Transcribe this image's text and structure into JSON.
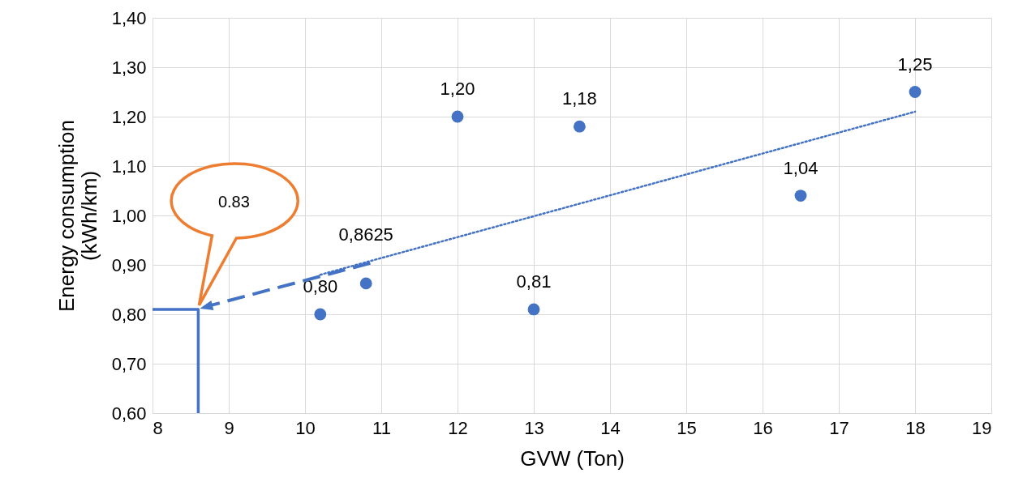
{
  "chart_data": {
    "type": "scatter",
    "xlabel": "GVW (Ton)",
    "ylabel": "Energy consumption (kWh/km)",
    "xlim": [
      8,
      19
    ],
    "xticks": [
      8,
      9,
      10,
      11,
      12,
      13,
      14,
      15,
      16,
      17,
      18,
      19
    ],
    "ylim": [
      0.6,
      1.4
    ],
    "yticks": [
      {
        "value": 0.6,
        "label": "0,60"
      },
      {
        "value": 0.7,
        "label": "0,70"
      },
      {
        "value": 0.8,
        "label": "0,80"
      },
      {
        "value": 0.9,
        "label": "0,90"
      },
      {
        "value": 1.0,
        "label": "1,00"
      },
      {
        "value": 1.1,
        "label": "1,10"
      },
      {
        "value": 1.2,
        "label": "1,20"
      },
      {
        "value": 1.3,
        "label": "1,30"
      },
      {
        "value": 1.4,
        "label": "1,40"
      }
    ],
    "grid": true,
    "series": [
      {
        "color": "#4472c4",
        "marker": "circle",
        "x": [
          10.2,
          10.8,
          12,
          13,
          13.6,
          16.5,
          18
        ],
        "values": [
          0.8,
          0.8625,
          1.2,
          0.81,
          1.18,
          1.04,
          1.25
        ],
        "value_labels": [
          "0,80",
          "0,8625",
          "1,20",
          "0,81",
          "1,18",
          "1,04",
          "1,25"
        ]
      },
      {
        "type": "line",
        "color": "#4472c4",
        "line_style": "dotted",
        "x": [
          10.2,
          18
        ],
        "values": [
          0.88,
          1.21
        ]
      },
      {
        "type": "line",
        "color": "#4472c4",
        "line_style": "solid",
        "x": [
          8,
          8.6,
          8.6
        ],
        "values": [
          0.81,
          0.81,
          0.6
        ]
      }
    ],
    "annotations": [
      "0.83"
    ]
  }
}
